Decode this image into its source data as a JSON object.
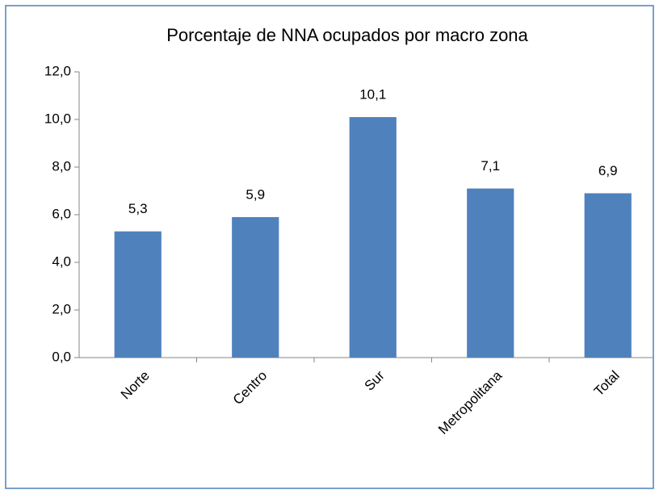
{
  "chart_data": {
    "type": "bar",
    "title": "Porcentaje de NNA ocupados por macro zona",
    "categories": [
      "Norte",
      "Centro",
      "Sur",
      "Metropolitana",
      "Total"
    ],
    "values": [
      5.3,
      5.9,
      10.1,
      7.1,
      6.9
    ],
    "value_labels": [
      "5,3",
      "5,9",
      "10,1",
      "7,1",
      "6,9"
    ],
    "color": "#4f81bd",
    "ylim": [
      0,
      12
    ],
    "yticks": [
      {
        "value": 0,
        "label": "0,0"
      },
      {
        "value": 2,
        "label": "2,0"
      },
      {
        "value": 4,
        "label": "4,0"
      },
      {
        "value": 6,
        "label": "6,0"
      },
      {
        "value": 8,
        "label": "8,0"
      },
      {
        "value": 10,
        "label": "10,0"
      },
      {
        "value": 12,
        "label": "12,0"
      }
    ],
    "grid": false
  }
}
